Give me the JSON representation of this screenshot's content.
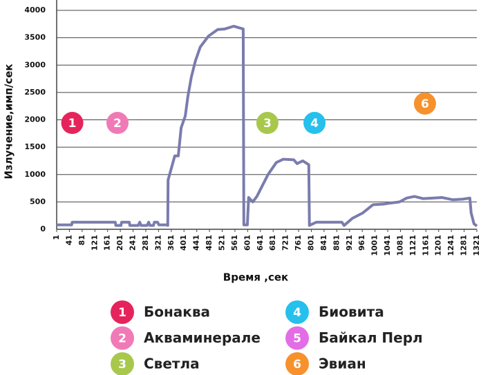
{
  "chart_data": {
    "type": "line",
    "x_label": "Время ,сек",
    "y_label": "Излучение,имп/сек",
    "xlim": [
      1,
      1321
    ],
    "xticks": [
      1,
      41,
      81,
      121,
      161,
      201,
      241,
      281,
      321,
      361,
      401,
      441,
      481,
      521,
      561,
      601,
      641,
      681,
      721,
      761,
      801,
      841,
      881,
      921,
      961,
      1001,
      1041,
      1081,
      1121,
      1161,
      1201,
      1241,
      1281,
      1321
    ],
    "ylim": [
      0,
      4000
    ],
    "yticks": [
      0,
      500,
      1000,
      1500,
      2000,
      2500,
      3000,
      3500,
      4000
    ],
    "grid": true,
    "x": [
      1,
      48,
      50,
      185,
      187,
      203,
      205,
      229,
      231,
      257,
      262,
      266,
      285,
      290,
      294,
      305,
      308,
      318,
      322,
      346,
      350,
      351,
      372,
      383,
      392,
      405,
      413,
      424,
      437,
      452,
      478,
      507,
      529,
      557,
      587,
      589,
      600,
      604,
      617,
      630,
      643,
      665,
      691,
      713,
      746,
      756,
      774,
      793,
      795,
      817,
      897,
      904,
      930,
      963,
      995,
      1028,
      1050,
      1078,
      1100,
      1125,
      1152,
      1212,
      1245,
      1277,
      1299,
      1303,
      1312,
      1321
    ],
    "series": [
      {
        "color": "#7a7cae",
        "values": [
          80,
          80,
          130,
          130,
          70,
          70,
          130,
          130,
          70,
          70,
          130,
          70,
          70,
          130,
          70,
          70,
          130,
          130,
          80,
          80,
          70,
          900,
          1340,
          1340,
          1855,
          2070,
          2420,
          2780,
          3080,
          3330,
          3530,
          3650,
          3660,
          3710,
          3660,
          80,
          80,
          580,
          500,
          600,
          750,
          1000,
          1220,
          1280,
          1270,
          1200,
          1250,
          1180,
          70,
          130,
          130,
          70,
          200,
          300,
          450,
          460,
          480,
          500,
          570,
          600,
          560,
          580,
          540,
          550,
          570,
          300,
          100,
          60
        ]
      }
    ],
    "annotations": [
      {
        "label": "1",
        "x": 50,
        "y": 1943,
        "color": "#e5245c"
      },
      {
        "label": "2",
        "x": 192,
        "y": 1943,
        "color": "#f07ab6"
      },
      {
        "label": "3",
        "x": 663,
        "y": 1943,
        "color": "#a8c84c"
      },
      {
        "label": "4",
        "x": 811,
        "y": 1943,
        "color": "#25c0ec"
      },
      {
        "label": "6",
        "x": 1158,
        "y": 2297,
        "color": "#f7912c"
      }
    ],
    "legend": [
      {
        "number": "1",
        "name": "Бонаква",
        "color": "#e5245c"
      },
      {
        "number": "2",
        "name": "Акваминерале",
        "color": "#f07ab6"
      },
      {
        "number": "3",
        "name": "Светла",
        "color": "#a8c84c"
      },
      {
        "number": "4",
        "name": "Биовита",
        "color": "#25c0ec"
      },
      {
        "number": "5",
        "name": "Байкал Перл",
        "color": "#e36de6"
      },
      {
        "number": "6",
        "name": "Эвиан",
        "color": "#f7912c"
      }
    ]
  }
}
